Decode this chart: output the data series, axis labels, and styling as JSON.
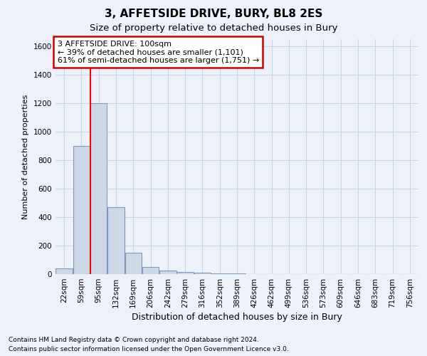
{
  "title": "3, AFFETSIDE DRIVE, BURY, BL8 2ES",
  "subtitle": "Size of property relative to detached houses in Bury",
  "xlabel": "Distribution of detached houses by size in Bury",
  "ylabel": "Number of detached properties",
  "footnote1": "Contains HM Land Registry data © Crown copyright and database right 2024.",
  "footnote2": "Contains public sector information licensed under the Open Government Licence v3.0.",
  "categories": [
    "22sqm",
    "59sqm",
    "95sqm",
    "132sqm",
    "169sqm",
    "206sqm",
    "242sqm",
    "279sqm",
    "316sqm",
    "352sqm",
    "389sqm",
    "426sqm",
    "462sqm",
    "499sqm",
    "536sqm",
    "573sqm",
    "609sqm",
    "646sqm",
    "683sqm",
    "719sqm",
    "756sqm"
  ],
  "values": [
    40,
    900,
    1200,
    470,
    150,
    50,
    25,
    15,
    10,
    5,
    3,
    2,
    1,
    0,
    0,
    0,
    0,
    0,
    0,
    0,
    0
  ],
  "bar_color": "#cdd8e8",
  "bar_edge_color": "#7a9abf",
  "red_line_x": 1.5,
  "ylim": [
    0,
    1650
  ],
  "yticks": [
    0,
    200,
    400,
    600,
    800,
    1000,
    1200,
    1400,
    1600
  ],
  "annotation_line1": "3 AFFETSIDE DRIVE: 100sqm",
  "annotation_line2": "← 39% of detached houses are smaller (1,101)",
  "annotation_line3": "61% of semi-detached houses are larger (1,751) →",
  "ann_box_color": "white",
  "ann_edge_color": "#cc0000",
  "grid_color": "#c8d4e8",
  "background_color": "#edf2fa",
  "title_fontsize": 11,
  "subtitle_fontsize": 9.5,
  "ylabel_fontsize": 8,
  "xlabel_fontsize": 9,
  "tick_fontsize": 7.5,
  "ann_fontsize": 8,
  "footnote_fontsize": 6.5
}
